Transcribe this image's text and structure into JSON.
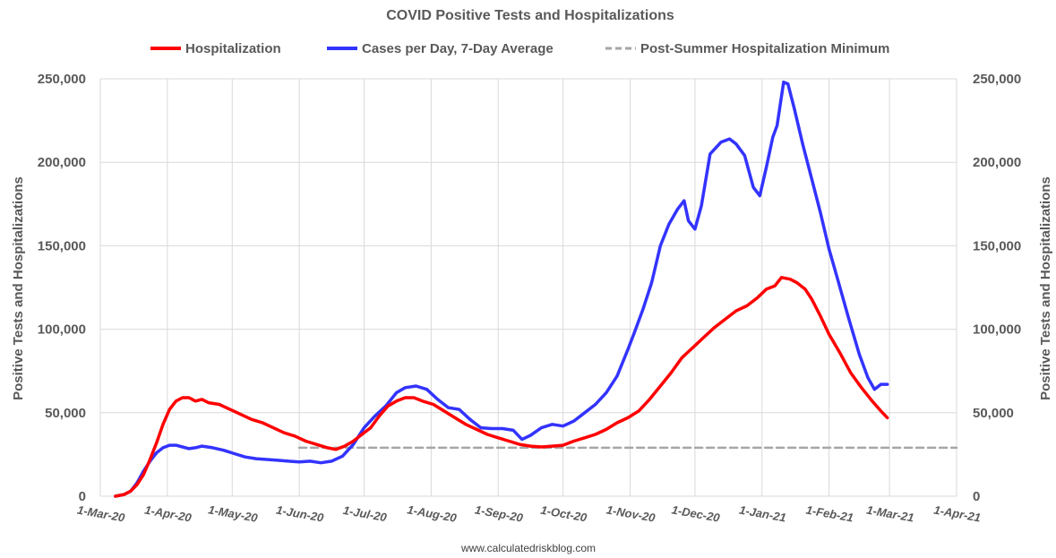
{
  "chart_data": {
    "type": "line",
    "title": "COVID Positive Tests and Hospitalizations",
    "ylabel_left": "Positive Tests and Hospitalizations",
    "ylabel_right": "Positive Tests and Hospitalizations",
    "source": "www.calculatedriskblog.com",
    "ylim": [
      0,
      250000
    ],
    "y_ticks": [
      0,
      50000,
      100000,
      150000,
      200000,
      250000
    ],
    "y_tick_labels": [
      "0",
      "50,000",
      "100,000",
      "150,000",
      "200,000",
      "250,000"
    ],
    "x_range": [
      "2020-03-01",
      "2021-04-01"
    ],
    "x_ticks": [
      "2020-03-01",
      "2020-04-01",
      "2020-05-01",
      "2020-06-01",
      "2020-07-01",
      "2020-08-01",
      "2020-09-01",
      "2020-10-01",
      "2020-11-01",
      "2020-12-01",
      "2021-01-01",
      "2021-02-01",
      "2021-03-01",
      "2021-04-01"
    ],
    "x_tick_labels": [
      "1-Mar-20",
      "1-Apr-20",
      "1-May-20",
      "1-Jun-20",
      "1-Jul-20",
      "1-Aug-20",
      "1-Sep-20",
      "1-Oct-20",
      "1-Nov-20",
      "1-Dec-20",
      "1-Jan-21",
      "1-Feb-21",
      "1-Mar-21",
      "1-Apr-21"
    ],
    "grid": true,
    "legend_position": "top",
    "series": [
      {
        "name": "Hospitalization",
        "color": "#ff0000",
        "points": [
          [
            "2020-03-08",
            0
          ],
          [
            "2020-03-12",
            1000
          ],
          [
            "2020-03-15",
            3000
          ],
          [
            "2020-03-18",
            7000
          ],
          [
            "2020-03-21",
            13000
          ],
          [
            "2020-03-24",
            22000
          ],
          [
            "2020-03-27",
            32000
          ],
          [
            "2020-03-30",
            43000
          ],
          [
            "2020-04-02",
            52000
          ],
          [
            "2020-04-05",
            57000
          ],
          [
            "2020-04-08",
            59000
          ],
          [
            "2020-04-11",
            59000
          ],
          [
            "2020-04-14",
            57000
          ],
          [
            "2020-04-17",
            58000
          ],
          [
            "2020-04-20",
            56000
          ],
          [
            "2020-04-25",
            55000
          ],
          [
            "2020-04-30",
            52000
          ],
          [
            "2020-05-05",
            49000
          ],
          [
            "2020-05-10",
            46000
          ],
          [
            "2020-05-15",
            44000
          ],
          [
            "2020-05-20",
            41000
          ],
          [
            "2020-05-25",
            38000
          ],
          [
            "2020-05-30",
            36000
          ],
          [
            "2020-06-04",
            33000
          ],
          [
            "2020-06-09",
            31000
          ],
          [
            "2020-06-14",
            29000
          ],
          [
            "2020-06-18",
            28000
          ],
          [
            "2020-06-22",
            30000
          ],
          [
            "2020-06-26",
            33000
          ],
          [
            "2020-06-30",
            37000
          ],
          [
            "2020-07-04",
            41000
          ],
          [
            "2020-07-08",
            48000
          ],
          [
            "2020-07-12",
            54000
          ],
          [
            "2020-07-16",
            57000
          ],
          [
            "2020-07-20",
            59000
          ],
          [
            "2020-07-24",
            59000
          ],
          [
            "2020-07-28",
            57000
          ],
          [
            "2020-08-02",
            55000
          ],
          [
            "2020-08-07",
            51000
          ],
          [
            "2020-08-12",
            47000
          ],
          [
            "2020-08-17",
            43000
          ],
          [
            "2020-08-22",
            40000
          ],
          [
            "2020-08-27",
            37000
          ],
          [
            "2020-09-01",
            35000
          ],
          [
            "2020-09-06",
            33000
          ],
          [
            "2020-09-11",
            31000
          ],
          [
            "2020-09-16",
            30000
          ],
          [
            "2020-09-21",
            29500
          ],
          [
            "2020-09-26",
            30000
          ],
          [
            "2020-10-01",
            30500
          ],
          [
            "2020-10-06",
            33000
          ],
          [
            "2020-10-11",
            35000
          ],
          [
            "2020-10-16",
            37000
          ],
          [
            "2020-10-21",
            40000
          ],
          [
            "2020-10-26",
            44000
          ],
          [
            "2020-10-31",
            47000
          ],
          [
            "2020-11-05",
            51000
          ],
          [
            "2020-11-10",
            58000
          ],
          [
            "2020-11-15",
            66000
          ],
          [
            "2020-11-20",
            74000
          ],
          [
            "2020-11-25",
            83000
          ],
          [
            "2020-11-30",
            89000
          ],
          [
            "2020-12-05",
            95000
          ],
          [
            "2020-12-10",
            101000
          ],
          [
            "2020-12-15",
            106000
          ],
          [
            "2020-12-20",
            111000
          ],
          [
            "2020-12-25",
            114000
          ],
          [
            "2020-12-30",
            119000
          ],
          [
            "2021-01-03",
            124000
          ],
          [
            "2021-01-07",
            126000
          ],
          [
            "2021-01-10",
            131000
          ],
          [
            "2021-01-14",
            130000
          ],
          [
            "2021-01-17",
            128000
          ],
          [
            "2021-01-21",
            124000
          ],
          [
            "2021-01-24",
            118000
          ],
          [
            "2021-01-28",
            108000
          ],
          [
            "2021-02-01",
            97000
          ],
          [
            "2021-02-06",
            86000
          ],
          [
            "2021-02-11",
            74000
          ],
          [
            "2021-02-16",
            65000
          ],
          [
            "2021-02-21",
            57000
          ],
          [
            "2021-02-25",
            51000
          ],
          [
            "2021-02-28",
            47000
          ]
        ]
      },
      {
        "name": "Cases per Day, 7-Day Average",
        "color": "#3333ff",
        "points": [
          [
            "2020-03-08",
            0
          ],
          [
            "2020-03-12",
            1000
          ],
          [
            "2020-03-15",
            3000
          ],
          [
            "2020-03-18",
            8000
          ],
          [
            "2020-03-21",
            15000
          ],
          [
            "2020-03-24",
            21000
          ],
          [
            "2020-03-27",
            26000
          ],
          [
            "2020-03-30",
            29000
          ],
          [
            "2020-04-02",
            30500
          ],
          [
            "2020-04-05",
            30500
          ],
          [
            "2020-04-08",
            29500
          ],
          [
            "2020-04-11",
            28500
          ],
          [
            "2020-04-14",
            29000
          ],
          [
            "2020-04-17",
            30000
          ],
          [
            "2020-04-22",
            29000
          ],
          [
            "2020-04-27",
            27500
          ],
          [
            "2020-05-02",
            25500
          ],
          [
            "2020-05-07",
            23500
          ],
          [
            "2020-05-12",
            22500
          ],
          [
            "2020-05-17",
            22000
          ],
          [
            "2020-05-22",
            21500
          ],
          [
            "2020-05-27",
            21000
          ],
          [
            "2020-06-01",
            20500
          ],
          [
            "2020-06-06",
            21000
          ],
          [
            "2020-06-11",
            20000
          ],
          [
            "2020-06-16",
            21000
          ],
          [
            "2020-06-21",
            24000
          ],
          [
            "2020-06-26",
            31000
          ],
          [
            "2020-07-01",
            41000
          ],
          [
            "2020-07-06",
            48000
          ],
          [
            "2020-07-11",
            54000
          ],
          [
            "2020-07-16",
            62000
          ],
          [
            "2020-07-20",
            65000
          ],
          [
            "2020-07-25",
            66000
          ],
          [
            "2020-07-30",
            64000
          ],
          [
            "2020-08-04",
            58000
          ],
          [
            "2020-08-09",
            53000
          ],
          [
            "2020-08-14",
            52000
          ],
          [
            "2020-08-19",
            46000
          ],
          [
            "2020-08-24",
            41000
          ],
          [
            "2020-08-29",
            40500
          ],
          [
            "2020-09-03",
            40500
          ],
          [
            "2020-09-08",
            39500
          ],
          [
            "2020-09-12",
            34000
          ],
          [
            "2020-09-16",
            36500
          ],
          [
            "2020-09-21",
            41000
          ],
          [
            "2020-09-26",
            43000
          ],
          [
            "2020-10-01",
            42000
          ],
          [
            "2020-10-06",
            45000
          ],
          [
            "2020-10-11",
            50000
          ],
          [
            "2020-10-16",
            55000
          ],
          [
            "2020-10-21",
            62000
          ],
          [
            "2020-10-26",
            72000
          ],
          [
            "2020-10-31",
            88000
          ],
          [
            "2020-11-03",
            98000
          ],
          [
            "2020-11-07",
            112000
          ],
          [
            "2020-11-11",
            128000
          ],
          [
            "2020-11-15",
            150000
          ],
          [
            "2020-11-19",
            163000
          ],
          [
            "2020-11-23",
            172000
          ],
          [
            "2020-11-26",
            177000
          ],
          [
            "2020-11-28",
            165000
          ],
          [
            "2020-12-01",
            160000
          ],
          [
            "2020-12-04",
            174000
          ],
          [
            "2020-12-08",
            205000
          ],
          [
            "2020-12-13",
            212000
          ],
          [
            "2020-12-17",
            214000
          ],
          [
            "2020-12-20",
            211000
          ],
          [
            "2020-12-24",
            204000
          ],
          [
            "2020-12-28",
            185000
          ],
          [
            "2020-12-31",
            180000
          ],
          [
            "2021-01-03",
            197000
          ],
          [
            "2021-01-06",
            215000
          ],
          [
            "2021-01-08",
            222000
          ],
          [
            "2021-01-11",
            248000
          ],
          [
            "2021-01-13",
            247000
          ],
          [
            "2021-01-16",
            232000
          ],
          [
            "2021-01-20",
            210000
          ],
          [
            "2021-01-24",
            190000
          ],
          [
            "2021-01-28",
            170000
          ],
          [
            "2021-02-01",
            148000
          ],
          [
            "2021-02-05",
            130000
          ],
          [
            "2021-02-10",
            107000
          ],
          [
            "2021-02-15",
            85000
          ],
          [
            "2021-02-19",
            71000
          ],
          [
            "2021-02-22",
            64000
          ],
          [
            "2021-02-25",
            67000
          ],
          [
            "2021-02-28",
            67000
          ]
        ]
      },
      {
        "name": "Post-Summer Hospitalization Minimum",
        "color": "#a6a6a6",
        "dashed": true,
        "points": [
          [
            "2020-06-01",
            29000
          ],
          [
            "2021-04-01",
            29000
          ]
        ]
      }
    ]
  }
}
